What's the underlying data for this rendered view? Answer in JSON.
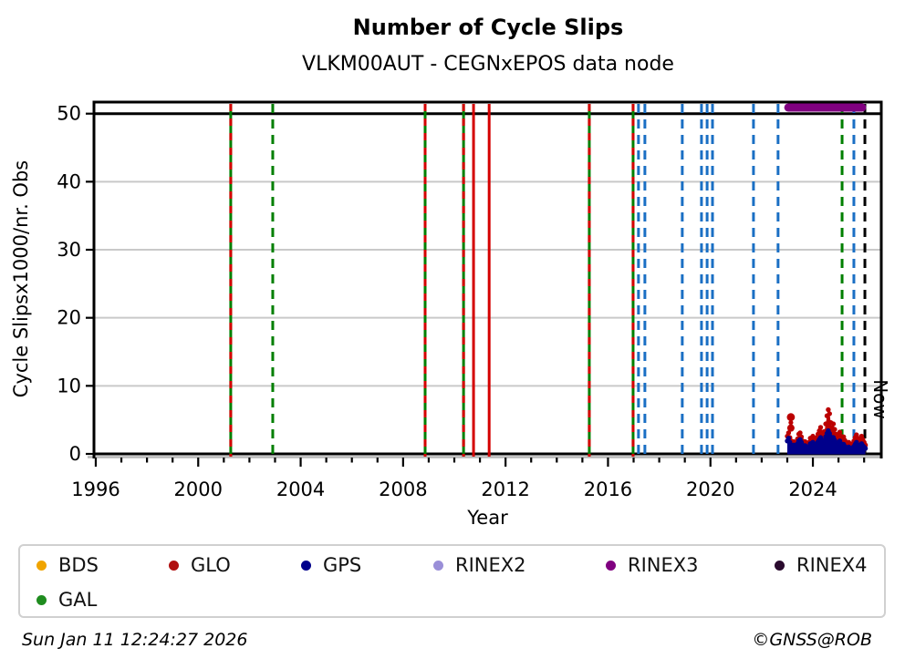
{
  "header": {
    "title": "Number of Cycle Slips",
    "subtitle": "VLKM00AUT - CEGNxEPOS data node"
  },
  "footer": {
    "timestamp": "Sun Jan 11 12:24:27 2026",
    "credit": "©GNSS@ROB"
  },
  "legend": {
    "items": [
      {
        "id": "bds",
        "label": "BDS",
        "color": "#f0a400"
      },
      {
        "id": "glo",
        "label": "GLO",
        "color": "#b01010"
      },
      {
        "id": "gps",
        "label": "GPS",
        "color": "#00008b"
      },
      {
        "id": "rinex2",
        "label": "RINEX2",
        "color": "#9a8fd8"
      },
      {
        "id": "rinex3",
        "label": "RINEX3",
        "color": "#800080"
      },
      {
        "id": "rinex4",
        "label": "RINEX4",
        "color": "#2a0a2e"
      },
      {
        "id": "gal",
        "label": "GAL",
        "color": "#1f8c1f"
      }
    ]
  },
  "chart_data": {
    "type": "scatter",
    "title": "Number of Cycle Slips",
    "subtitle": "VLKM00AUT - CEGNxEPOS data node",
    "xlabel": "Year",
    "ylabel": "Cycle Slipsx1000/nr. Obs",
    "xlim": [
      1995.93,
      2026.67
    ],
    "ylim": [
      0,
      51.7
    ],
    "x_major_ticks": [
      1996,
      2000,
      2004,
      2008,
      2012,
      2016,
      2020,
      2024
    ],
    "x_minor_step": 1,
    "y_ticks": [
      0,
      10,
      20,
      30,
      40,
      50
    ],
    "grid": "horizontal-light-gray",
    "legend_position": "bottom",
    "hlines": [
      0,
      50
    ],
    "now": {
      "label": "Now",
      "year": 2026.03
    },
    "colors": {
      "GAL": "#007f00",
      "GLO": "#d40000",
      "GPS": "#1a6fc4",
      "NOW": "#000000",
      "RINEX3": "#800080",
      "grid": "#c9c9c9",
      "baseline": "#b8b8b8"
    },
    "rinex3_span": {
      "start": 2023.04,
      "end": 2025.92,
      "y": 50.9
    },
    "event_lines": [
      {
        "year": 2001.27,
        "system": "GAL",
        "style": "solid"
      },
      {
        "year": 2001.27,
        "system": "GLO",
        "style": "dashed"
      },
      {
        "year": 2002.91,
        "system": "GAL",
        "style": "dashed"
      },
      {
        "year": 2008.86,
        "system": "GAL",
        "style": "solid"
      },
      {
        "year": 2008.86,
        "system": "GLO",
        "style": "dashed"
      },
      {
        "year": 2010.36,
        "system": "GAL",
        "style": "solid"
      },
      {
        "year": 2010.36,
        "system": "GLO",
        "style": "dashed"
      },
      {
        "year": 2010.75,
        "system": "GLO",
        "style": "solid"
      },
      {
        "year": 2011.36,
        "system": "GLO",
        "style": "solid"
      },
      {
        "year": 2015.27,
        "system": "GAL",
        "style": "solid"
      },
      {
        "year": 2015.27,
        "system": "GLO",
        "style": "dashed"
      },
      {
        "year": 2016.98,
        "system": "GAL",
        "style": "solid"
      },
      {
        "year": 2016.98,
        "system": "GLO",
        "style": "dashed"
      },
      {
        "year": 2017.19,
        "system": "GPS",
        "style": "dashed"
      },
      {
        "year": 2017.44,
        "system": "GPS",
        "style": "dashed"
      },
      {
        "year": 2018.9,
        "system": "GPS",
        "style": "dashed"
      },
      {
        "year": 2019.65,
        "system": "GPS",
        "style": "dashed"
      },
      {
        "year": 2019.87,
        "system": "GPS",
        "style": "dashed"
      },
      {
        "year": 2020.08,
        "system": "GPS",
        "style": "dashed"
      },
      {
        "year": 2021.68,
        "system": "GPS",
        "style": "dashed"
      },
      {
        "year": 2022.64,
        "system": "GPS",
        "style": "dashed"
      },
      {
        "year": 2025.14,
        "system": "GAL",
        "style": "dashed"
      },
      {
        "year": 2025.6,
        "system": "GPS",
        "style": "dashed"
      },
      {
        "year": 2026.03,
        "system": "NOW",
        "style": "dashed"
      }
    ],
    "series": [
      {
        "name": "GLO",
        "color": "#bb0000",
        "points": [
          [
            2023.0,
            2.6
          ],
          [
            2023.05,
            3.1
          ],
          [
            2023.1,
            2.4
          ],
          [
            2023.15,
            1.9
          ],
          [
            2023.2,
            1.5
          ],
          [
            2023.25,
            1.8
          ],
          [
            2023.3,
            1.3
          ],
          [
            2023.35,
            1.6
          ],
          [
            2023.4,
            2.2
          ],
          [
            2023.45,
            2.9
          ],
          [
            2023.5,
            3.1
          ],
          [
            2023.55,
            2.5
          ],
          [
            2023.6,
            1.9
          ],
          [
            2023.65,
            1.5
          ],
          [
            2023.7,
            1.8
          ],
          [
            2023.75,
            1.4
          ],
          [
            2023.8,
            1.2
          ],
          [
            2023.85,
            1.7
          ],
          [
            2023.9,
            2.3
          ],
          [
            2023.95,
            2.0
          ],
          [
            2024.0,
            2.6
          ],
          [
            2024.05,
            2.2
          ],
          [
            2024.1,
            1.8
          ],
          [
            2024.15,
            2.4
          ],
          [
            2024.2,
            2.9
          ],
          [
            2024.25,
            3.4
          ],
          [
            2024.3,
            3.9
          ],
          [
            2024.35,
            3.2
          ],
          [
            2024.4,
            2.7
          ],
          [
            2024.45,
            3.3
          ],
          [
            2024.5,
            4.4
          ],
          [
            2024.55,
            5.6
          ],
          [
            2024.6,
            6.5
          ],
          [
            2024.65,
            5.9
          ],
          [
            2024.7,
            4.6
          ],
          [
            2024.75,
            3.8
          ],
          [
            2024.8,
            4.4
          ],
          [
            2024.85,
            3.6
          ],
          [
            2024.9,
            2.9
          ],
          [
            2024.95,
            2.4
          ],
          [
            2025.0,
            2.8
          ],
          [
            2025.05,
            3.2
          ],
          [
            2025.1,
            2.6
          ],
          [
            2025.15,
            2.1
          ],
          [
            2025.2,
            2.5
          ],
          [
            2025.25,
            2.0
          ],
          [
            2025.3,
            1.6
          ],
          [
            2025.35,
            1.3
          ],
          [
            2025.4,
            1.7
          ],
          [
            2025.45,
            1.4
          ],
          [
            2025.5,
            1.1
          ],
          [
            2025.55,
            1.5
          ],
          [
            2025.6,
            1.9
          ],
          [
            2025.65,
            2.4
          ],
          [
            2025.7,
            2.8
          ],
          [
            2025.75,
            2.3
          ],
          [
            2025.8,
            1.9
          ],
          [
            2025.85,
            2.2
          ],
          [
            2025.9,
            2.6
          ],
          [
            2025.95,
            2.1
          ],
          [
            2026.0,
            1.7
          ],
          [
            2026.05,
            1.3
          ]
        ]
      },
      {
        "name": "GPS",
        "color": "#00008b",
        "points": [
          [
            2023.0,
            1.9
          ],
          [
            2023.05,
            2.3
          ],
          [
            2023.1,
            1.7
          ],
          [
            2023.15,
            1.3
          ],
          [
            2023.2,
            1.0
          ],
          [
            2023.25,
            1.3
          ],
          [
            2023.3,
            0.9
          ],
          [
            2023.35,
            1.1
          ],
          [
            2023.4,
            1.5
          ],
          [
            2023.45,
            1.9
          ],
          [
            2023.5,
            2.1
          ],
          [
            2023.55,
            1.7
          ],
          [
            2023.6,
            1.3
          ],
          [
            2023.65,
            1.0
          ],
          [
            2023.7,
            1.2
          ],
          [
            2023.75,
            0.9
          ],
          [
            2023.8,
            0.8
          ],
          [
            2023.85,
            1.1
          ],
          [
            2023.9,
            1.5
          ],
          [
            2023.95,
            1.3
          ],
          [
            2024.0,
            1.7
          ],
          [
            2024.05,
            1.4
          ],
          [
            2024.1,
            1.2
          ],
          [
            2024.15,
            1.5
          ],
          [
            2024.2,
            1.8
          ],
          [
            2024.25,
            2.1
          ],
          [
            2024.3,
            2.4
          ],
          [
            2024.35,
            2.0
          ],
          [
            2024.4,
            1.7
          ],
          [
            2024.45,
            2.0
          ],
          [
            2024.5,
            2.5
          ],
          [
            2024.55,
            3.0
          ],
          [
            2024.6,
            3.4
          ],
          [
            2024.65,
            3.0
          ],
          [
            2024.7,
            2.5
          ],
          [
            2024.75,
            2.1
          ],
          [
            2024.8,
            2.4
          ],
          [
            2024.85,
            2.0
          ],
          [
            2024.9,
            1.7
          ],
          [
            2024.95,
            1.4
          ],
          [
            2025.0,
            1.6
          ],
          [
            2025.05,
            1.9
          ],
          [
            2025.1,
            1.5
          ],
          [
            2025.15,
            1.2
          ],
          [
            2025.2,
            1.4
          ],
          [
            2025.25,
            1.1
          ],
          [
            2025.3,
            0.9
          ],
          [
            2025.35,
            0.8
          ],
          [
            2025.4,
            1.0
          ],
          [
            2025.45,
            0.8
          ],
          [
            2025.5,
            0.7
          ],
          [
            2025.55,
            0.9
          ],
          [
            2025.6,
            1.1
          ],
          [
            2025.65,
            1.4
          ],
          [
            2025.7,
            1.7
          ],
          [
            2025.75,
            1.3
          ],
          [
            2025.8,
            1.1
          ],
          [
            2025.85,
            1.3
          ],
          [
            2025.9,
            1.5
          ],
          [
            2025.95,
            1.2
          ],
          [
            2026.0,
            1.0
          ],
          [
            2026.05,
            0.8
          ]
        ]
      }
    ],
    "outliers": [
      {
        "series": "GLO",
        "x": 2023.14,
        "y": 5.4,
        "r": 4.4
      },
      {
        "series": "GLO",
        "x": 2023.14,
        "y": 4.6,
        "r": 2.6
      },
      {
        "series": "GLO",
        "x": 2023.14,
        "y": 3.8,
        "r": 4.0
      }
    ]
  }
}
